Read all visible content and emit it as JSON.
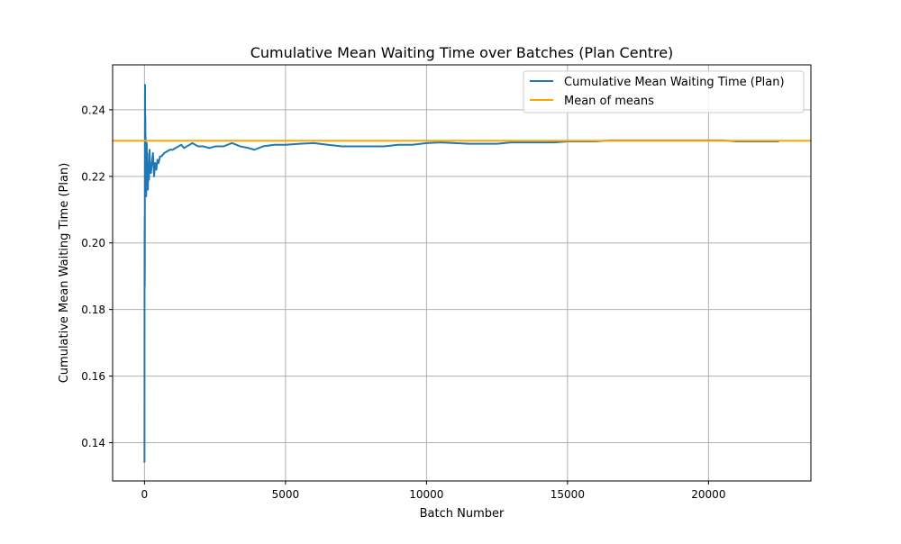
{
  "chart_data": {
    "type": "line",
    "title": "Cumulative Mean Waiting Time over Batches (Plan Centre)",
    "xlabel": "Batch Number",
    "ylabel": "Cumulative Mean Waiting Time (Plan)",
    "xlim": [
      -1130,
      23630
    ],
    "ylim": [
      0.1285,
      0.2535
    ],
    "x_ticks": [
      0,
      5000,
      10000,
      15000,
      20000
    ],
    "y_ticks": [
      0.14,
      0.16,
      0.18,
      0.2,
      0.22,
      0.24
    ],
    "x_tick_labels": [
      "0",
      "5000",
      "10000",
      "15000",
      "20000"
    ],
    "y_tick_labels": [
      "0.14",
      "0.16",
      "0.18",
      "0.20",
      "0.22",
      "0.24"
    ],
    "grid": true,
    "legend_position": "upper right",
    "series": [
      {
        "name": "Cumulative Mean Waiting Time (Plan)",
        "color": "#1f77b4",
        "x": [
          0,
          2,
          4,
          6,
          8,
          10,
          12,
          14,
          16,
          18,
          20,
          25,
          30,
          35,
          40,
          45,
          50,
          60,
          70,
          80,
          90,
          100,
          120,
          140,
          160,
          180,
          200,
          230,
          260,
          300,
          340,
          380,
          420,
          460,
          500,
          550,
          600,
          700,
          800,
          900,
          1000,
          1100,
          1200,
          1300,
          1400,
          1500,
          1700,
          1900,
          2100,
          2300,
          2500,
          2800,
          3100,
          3400,
          3700,
          3900,
          4200,
          4600,
          5000,
          5500,
          6000,
          6500,
          7000,
          7500,
          8000,
          8500,
          9000,
          9500,
          10000,
          10500,
          11000,
          11500,
          12000,
          12500,
          13000,
          13500,
          14000,
          14500,
          15000,
          15500,
          16000,
          16500,
          17000,
          17500,
          18000,
          18500,
          19000,
          19500,
          20000,
          20500,
          21000,
          21500,
          22000,
          22500
        ],
        "y": [
          0.134,
          0.176,
          0.204,
          0.19,
          0.208,
          0.187,
          0.2,
          0.222,
          0.234,
          0.24,
          0.2475,
          0.23,
          0.238,
          0.226,
          0.232,
          0.221,
          0.229,
          0.214,
          0.222,
          0.23,
          0.219,
          0.227,
          0.216,
          0.224,
          0.219,
          0.228,
          0.222,
          0.221,
          0.224,
          0.227,
          0.22,
          0.224,
          0.222,
          0.225,
          0.224,
          0.226,
          0.226,
          0.227,
          0.2275,
          0.228,
          0.228,
          0.2285,
          0.229,
          0.2295,
          0.2285,
          0.229,
          0.23,
          0.229,
          0.229,
          0.2285,
          0.229,
          0.229,
          0.23,
          0.229,
          0.2285,
          0.228,
          0.229,
          0.2295,
          0.2295,
          0.2298,
          0.23,
          0.2295,
          0.229,
          0.229,
          0.229,
          0.229,
          0.2295,
          0.2295,
          0.23,
          0.2302,
          0.23,
          0.2298,
          0.2298,
          0.2298,
          0.2302,
          0.2302,
          0.2302,
          0.2302,
          0.2305,
          0.2305,
          0.2305,
          0.2308,
          0.2308,
          0.2308,
          0.2308,
          0.2308,
          0.2308,
          0.2308,
          0.2308,
          0.2308,
          0.2305,
          0.2305,
          0.2305,
          0.2305
        ]
      },
      {
        "name": "Mean of means",
        "color": "#ffa500",
        "type": "hline",
        "y": 0.2307
      }
    ]
  }
}
